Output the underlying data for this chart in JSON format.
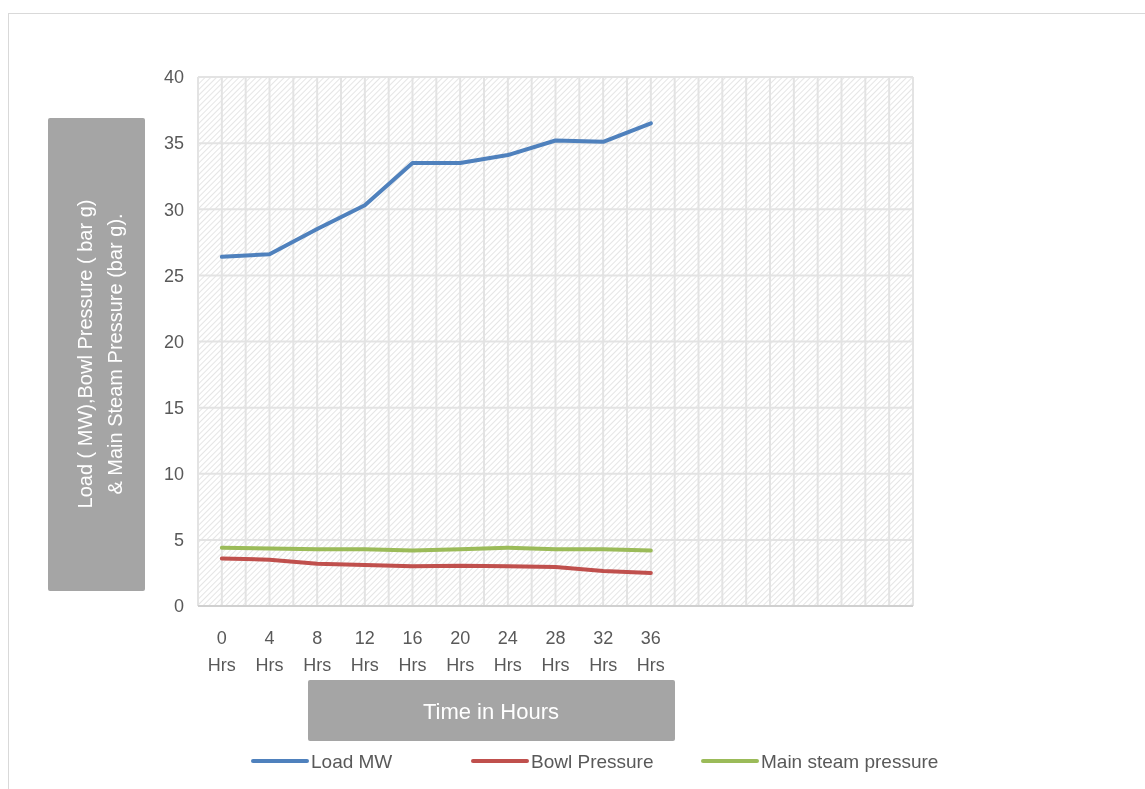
{
  "chart_data": {
    "type": "line",
    "xlabel": "Time in Hours",
    "ylabel": "Load ( MW),Bowl Pressure ( bar g) & Main Steam Pressure (bar g).",
    "categories": [
      "0 Hrs",
      "4 Hrs",
      "8 Hrs",
      "12 Hrs",
      "16 Hrs",
      "20 Hrs",
      "24 Hrs",
      "28 Hrs",
      "32 Hrs",
      "36 Hrs",
      null,
      null,
      null,
      null,
      null
    ],
    "series": [
      {
        "name": "Load MW",
        "color": "#4f81bd",
        "values": [
          26.4,
          26.6,
          28.5,
          30.3,
          33.5,
          33.5,
          34.1,
          35.2,
          35.1,
          36.5,
          null,
          null,
          null,
          null,
          null
        ]
      },
      {
        "name": "Bowl Pressure",
        "color": "#c0504d",
        "values": [
          3.6,
          3.5,
          3.2,
          3.1,
          3.0,
          3.05,
          3.0,
          2.95,
          2.65,
          2.5,
          null,
          null,
          null,
          null,
          null
        ]
      },
      {
        "name": "Main steam pressure",
        "color": "#9bbb59",
        "values": [
          4.4,
          4.35,
          4.3,
          4.3,
          4.2,
          4.3,
          4.4,
          4.3,
          4.3,
          4.2,
          null,
          null,
          null,
          null,
          null
        ]
      }
    ],
    "ylim": [
      0,
      40
    ],
    "yticks": [
      0,
      5,
      10,
      15,
      20,
      25,
      30,
      35,
      40
    ],
    "grid": true,
    "legend": "bottom",
    "marker": "none",
    "line_style": "solid"
  }
}
